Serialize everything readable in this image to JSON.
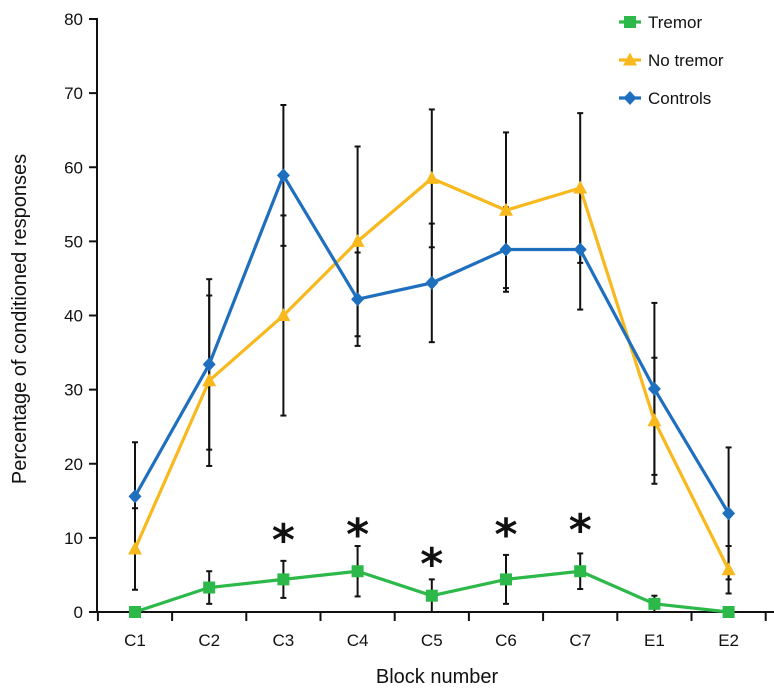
{
  "chart_data": {
    "type": "line",
    "xlabel": "Block number",
    "ylabel": "Percentage of conditioned responses",
    "categories": [
      "C1",
      "C2",
      "C3",
      "C4",
      "C5",
      "C6",
      "C7",
      "E1",
      "E2"
    ],
    "ylim": [
      0,
      80
    ],
    "yticks": [
      "0",
      "10",
      "20",
      "30",
      "40",
      "50",
      "60",
      "70",
      "80"
    ],
    "legend_position": "top-right",
    "series": [
      {
        "name": "Tremor",
        "color": "#2db84a",
        "marker": "square",
        "values": [
          0,
          3.3,
          4.4,
          5.5,
          2.2,
          4.4,
          5.5,
          1.1,
          0
        ],
        "errors": [
          0,
          2.2,
          2.5,
          3.4,
          2.2,
          3.3,
          2.4,
          1.1,
          0
        ]
      },
      {
        "name": "No tremor",
        "color": "#f7b91e",
        "marker": "triangle",
        "values": [
          8.5,
          31.2,
          40,
          50,
          58.5,
          54.2,
          57.2,
          25.8,
          5.7
        ],
        "errors": [
          5.5,
          11.5,
          13.5,
          12.8,
          9.3,
          10.5,
          10.1,
          8.5,
          3.2
        ]
      },
      {
        "name": "Controls",
        "color": "#1f6fbf",
        "marker": "diamond",
        "values": [
          15.6,
          33.4,
          58.9,
          42.2,
          44.4,
          48.9,
          48.9,
          30.1,
          13.3
        ],
        "errors": [
          7.3,
          11.5,
          9.5,
          6.3,
          8.0,
          5.7,
          8.1,
          11.6,
          8.9
        ]
      }
    ],
    "annotations": [
      {
        "text": "*",
        "category": "C3",
        "y": 11.5
      },
      {
        "text": "*",
        "category": "C4",
        "y": 12.2
      },
      {
        "text": "*",
        "category": "C5",
        "y": 8.2
      },
      {
        "text": "*",
        "category": "C6",
        "y": 12.2
      },
      {
        "text": "*",
        "category": "C7",
        "y": 12.8
      }
    ]
  }
}
